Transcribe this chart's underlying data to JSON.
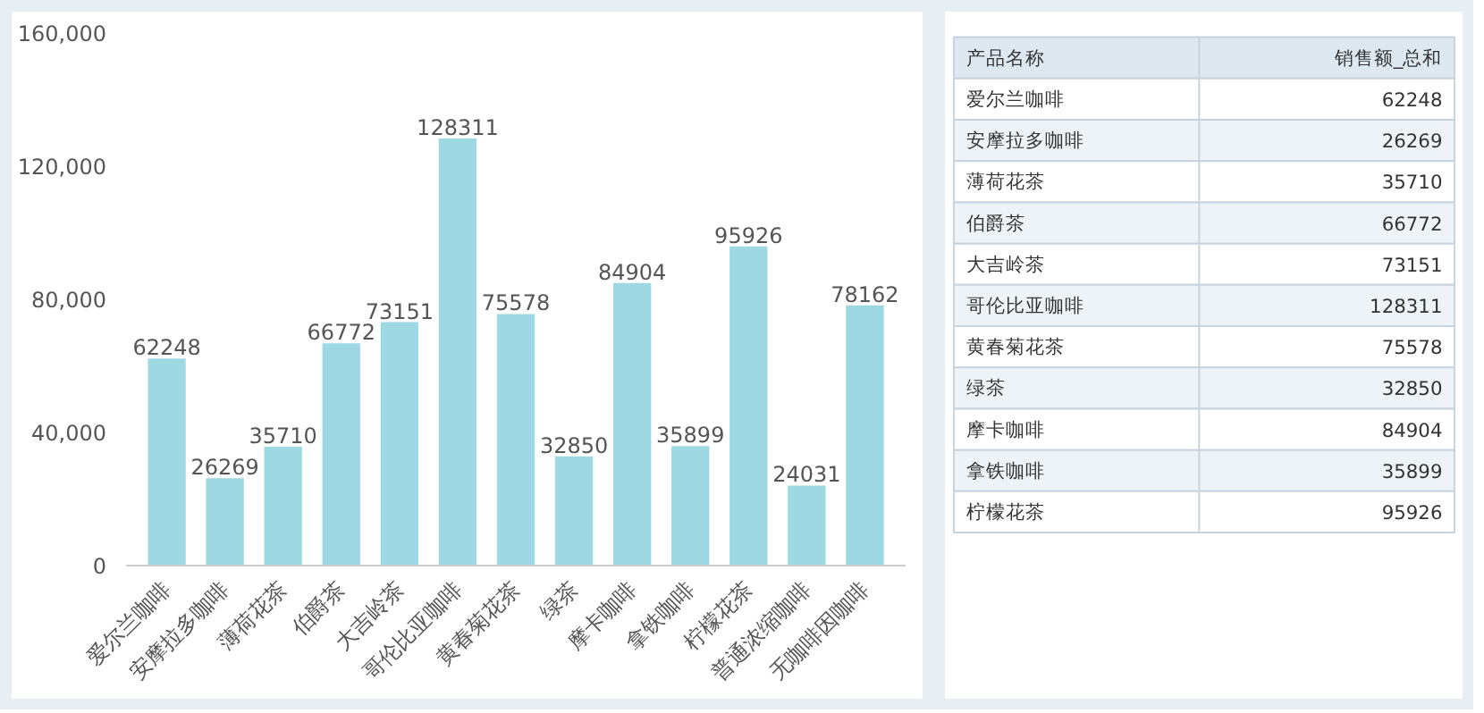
{
  "chart_data": [
    {
      "type": "bar",
      "categories": [
        "爱尔兰咖啡",
        "安摩拉多咖啡",
        "薄荷花茶",
        "伯爵茶",
        "大吉岭茶",
        "哥伦比亚咖啡",
        "黄春菊花茶",
        "绿茶",
        "摩卡咖啡",
        "拿铁咖啡",
        "柠檬花茶",
        "普通浓缩咖啡",
        "无咖啡因咖啡"
      ],
      "values": [
        62248,
        26269,
        35710,
        66772,
        73151,
        128311,
        75578,
        32850,
        84904,
        35899,
        95926,
        24031,
        78162
      ],
      "color": "#9dd8e3",
      "ylim": [
        0,
        160000
      ],
      "yticks": [
        0,
        {
          "value": 40000,
          "label": "40,000"
        },
        {
          "value": 80000,
          "label": "80,000"
        },
        {
          "value": 120000,
          "label": "120,000"
        },
        {
          "value": 160000,
          "label": "160,000"
        }
      ],
      "grid": false,
      "data_labels": true
    },
    {
      "type": "other",
      "annotations": [
        "产品名称",
        "销售额_总和"
      ],
      "categories": [
        "爱尔兰咖啡",
        "安摩拉多咖啡",
        "薄荷花茶",
        "伯爵茶",
        "大吉岭茶",
        "哥伦比亚咖啡",
        "黄春菊花茶",
        "绿茶",
        "摩卡咖啡",
        "拿铁咖啡",
        "柠檬花茶"
      ],
      "values": [
        62248,
        26269,
        35710,
        66772,
        73151,
        128311,
        75578,
        32850,
        84904,
        35899,
        95926
      ],
      "data_labels": true
    }
  ]
}
